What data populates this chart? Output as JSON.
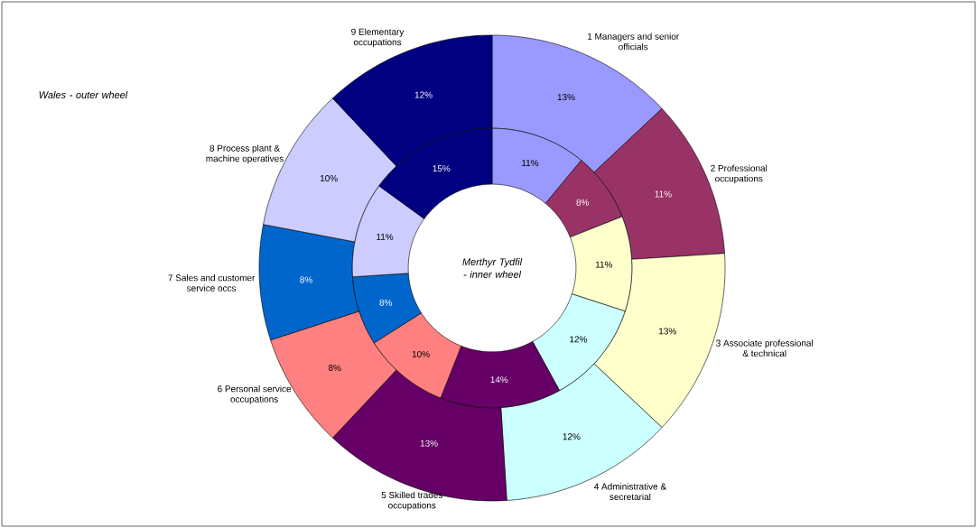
{
  "chart_data": {
    "type": "donut",
    "categories": [
      "1 Managers and senior officials",
      "2 Professional occupations",
      "3 Associate professional & technical",
      "4 Administrative & secretarial",
      "5 Skilled trades occupations",
      "6 Personal service occupations",
      "7 Sales and customer service occs",
      "8 Process plant & machine operatives",
      "9 Elementary occupations"
    ],
    "colors": [
      "#9999ff",
      "#993366",
      "#ffffcc",
      "#ccffff",
      "#660066",
      "#ff8080",
      "#0066cc",
      "#ccccff",
      "#000080"
    ],
    "series": [
      {
        "name": "Wales - outer wheel",
        "values": [
          13,
          11,
          13,
          12,
          13,
          8,
          8,
          10,
          12
        ],
        "value_labels": [
          "13%",
          "11%",
          "13%",
          "12%",
          "13%",
          "8%",
          "8%",
          "10%",
          "12%"
        ]
      },
      {
        "name": "Merthyr Tydfil - inner wheel",
        "values": [
          11,
          8,
          11,
          12,
          14,
          10,
          8,
          11,
          15
        ],
        "value_labels": [
          "11%",
          "8%",
          "11%",
          "12%",
          "14%",
          "10%",
          "8%",
          "11%",
          "15%"
        ]
      }
    ],
    "legend": false
  }
}
